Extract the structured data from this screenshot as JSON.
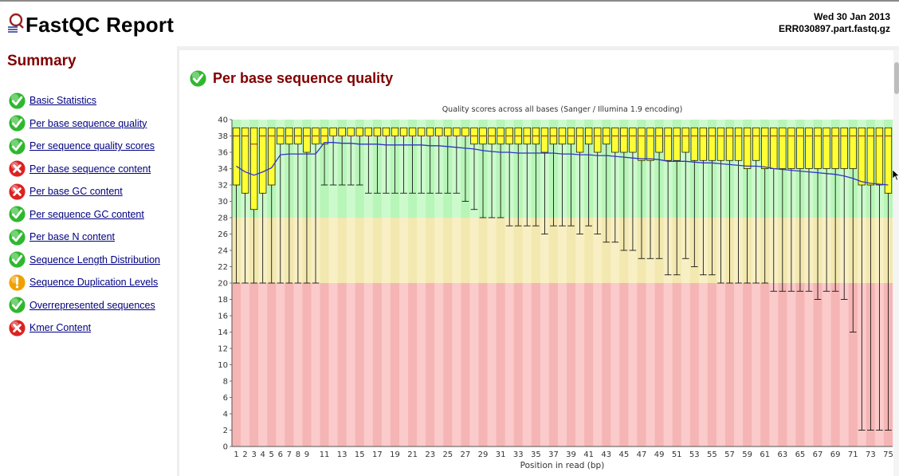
{
  "header": {
    "title": "FastQC Report",
    "date": "Wed 30 Jan 2013",
    "filename": "ERR030897.part.fastq.gz"
  },
  "summary": {
    "title": "Summary",
    "items": [
      {
        "label": "Basic Statistics",
        "status": "pass"
      },
      {
        "label": "Per base sequence quality",
        "status": "pass"
      },
      {
        "label": "Per sequence quality scores",
        "status": "pass"
      },
      {
        "label": "Per base sequence content",
        "status": "fail"
      },
      {
        "label": "Per base GC content",
        "status": "fail"
      },
      {
        "label": "Per sequence GC content",
        "status": "pass"
      },
      {
        "label": "Per base N content",
        "status": "pass"
      },
      {
        "label": "Sequence Length Distribution",
        "status": "pass"
      },
      {
        "label": "Sequence Duplication Levels",
        "status": "warn"
      },
      {
        "label": "Overrepresented sequences",
        "status": "pass"
      },
      {
        "label": "Kmer Content",
        "status": "fail"
      }
    ]
  },
  "module": {
    "title": "Per base sequence quality",
    "status": "pass"
  },
  "colors": {
    "pass": "#2eb82e",
    "warn": "#f0a000",
    "fail": "#dd2222",
    "good_band": [
      "#b8f5b8",
      "#cdfacd"
    ],
    "ok_band": [
      "#f2e8b0",
      "#f8efc4"
    ],
    "bad_band": [
      "#f5b5b5",
      "#fbcaca"
    ],
    "box": "#ffff33",
    "mean_line": "#3333cc"
  },
  "chart_data": {
    "type": "box",
    "title": "Quality scores across all bases (Sanger / Illumina 1.9 encoding)",
    "xlabel": "Position in read (bp)",
    "ylabel": "",
    "ylim": [
      0,
      40
    ],
    "yticks": [
      0,
      2,
      4,
      6,
      8,
      10,
      12,
      14,
      16,
      18,
      20,
      22,
      24,
      26,
      28,
      30,
      32,
      34,
      36,
      38,
      40
    ],
    "xtick_labels": [
      "1",
      "2",
      "3",
      "4",
      "5",
      "6",
      "7",
      "8",
      "9",
      "11",
      "13",
      "15",
      "17",
      "19",
      "21",
      "23",
      "25",
      "27",
      "29",
      "31",
      "33",
      "35",
      "37",
      "39",
      "41",
      "43",
      "45",
      "47",
      "49",
      "51",
      "53",
      "55",
      "57",
      "59",
      "61",
      "63",
      "65",
      "67",
      "69",
      "71",
      "73",
      "75"
    ],
    "bands": [
      {
        "from": 28,
        "to": 40,
        "quality": "good"
      },
      {
        "from": 20,
        "to": 28,
        "quality": "ok"
      },
      {
        "from": 0,
        "to": 20,
        "quality": "bad"
      }
    ],
    "lower": [
      20,
      20,
      20,
      20,
      20,
      20,
      20,
      20,
      20,
      20,
      32,
      32,
      32,
      32,
      32,
      31,
      31,
      31,
      31,
      31,
      31,
      31,
      31,
      31,
      31,
      31,
      30,
      29,
      28,
      28,
      28,
      27,
      27,
      27,
      27,
      26,
      27,
      27,
      27,
      26,
      27,
      26,
      25,
      25,
      24,
      24,
      23,
      23,
      23,
      21,
      21,
      23,
      22,
      21,
      21,
      20,
      20,
      20,
      20,
      20,
      20,
      19,
      19,
      19,
      19,
      19,
      18,
      19,
      19,
      18,
      14,
      2,
      2,
      2,
      2
    ],
    "q1": [
      32,
      31,
      29,
      31,
      32,
      37,
      37,
      37,
      36,
      37,
      37,
      38,
      38,
      38,
      38,
      38,
      38,
      38,
      38,
      38,
      38,
      38,
      38,
      38,
      38,
      38,
      38,
      37,
      37,
      37,
      37,
      37,
      37,
      37,
      37,
      36,
      37,
      37,
      37,
      36,
      37,
      36,
      37,
      36,
      36,
      36,
      35,
      35,
      36,
      35,
      35,
      36,
      35,
      35,
      35,
      35,
      35,
      35,
      34,
      35,
      34,
      34,
      34,
      34,
      34,
      34,
      34,
      34,
      34,
      34,
      34,
      32,
      32,
      32,
      31
    ],
    "median": [
      38,
      38,
      37,
      38,
      38,
      38,
      38,
      38,
      38,
      38,
      38,
      38,
      38,
      38,
      38,
      38,
      38,
      38,
      38,
      38,
      38,
      38,
      38,
      38,
      38,
      38,
      38,
      38,
      38,
      38,
      38,
      38,
      38,
      38,
      38,
      38,
      38,
      38,
      38,
      38,
      38,
      38,
      38,
      38,
      38,
      38,
      38,
      38,
      38,
      38,
      38,
      38,
      38,
      38,
      38,
      38,
      38,
      38,
      38,
      38,
      38,
      38,
      38,
      38,
      38,
      38,
      38,
      38,
      38,
      38,
      38,
      38,
      38,
      38,
      38
    ],
    "q3": [
      39,
      39,
      39,
      39,
      39,
      39,
      39,
      39,
      39,
      39,
      39,
      39,
      39,
      39,
      39,
      39,
      39,
      39,
      39,
      39,
      39,
      39,
      39,
      39,
      39,
      39,
      39,
      39,
      39,
      39,
      39,
      39,
      39,
      39,
      39,
      39,
      39,
      39,
      39,
      39,
      39,
      39,
      39,
      39,
      39,
      39,
      39,
      39,
      39,
      39,
      39,
      39,
      39,
      39,
      39,
      39,
      39,
      39,
      39,
      39,
      39,
      39,
      39,
      39,
      39,
      39,
      39,
      39,
      39,
      39,
      39,
      39,
      39,
      39,
      39
    ],
    "upper": [
      39,
      39,
      39,
      39,
      39,
      39,
      39,
      39,
      39,
      39,
      39,
      39,
      39,
      39,
      39,
      39,
      39,
      39,
      39,
      39,
      39,
      39,
      39,
      39,
      39,
      39,
      39,
      39,
      39,
      39,
      39,
      39,
      39,
      39,
      39,
      39,
      39,
      39,
      39,
      39,
      39,
      39,
      39,
      39,
      39,
      39,
      39,
      39,
      39,
      39,
      39,
      39,
      39,
      39,
      39,
      39,
      39,
      39,
      39,
      39,
      39,
      39,
      39,
      39,
      39,
      39,
      39,
      39,
      39,
      39,
      39,
      39,
      39,
      39,
      39
    ],
    "mean": [
      34.3,
      33.6,
      33.2,
      33.6,
      34.1,
      35.7,
      35.8,
      35.8,
      35.8,
      35.8,
      37.2,
      37.2,
      37.1,
      37.1,
      37.0,
      37.0,
      37.0,
      36.9,
      36.9,
      36.9,
      36.9,
      36.9,
      36.8,
      36.8,
      36.7,
      36.6,
      36.5,
      36.4,
      36.2,
      36.1,
      36.0,
      36.0,
      35.9,
      35.9,
      35.9,
      35.9,
      35.9,
      35.8,
      35.8,
      35.7,
      35.7,
      35.6,
      35.6,
      35.5,
      35.4,
      35.3,
      35.2,
      35.2,
      35.1,
      34.9,
      34.9,
      34.9,
      34.8,
      34.7,
      34.7,
      34.6,
      34.5,
      34.4,
      34.3,
      34.3,
      34.2,
      34.0,
      33.9,
      33.8,
      33.7,
      33.6,
      33.5,
      33.4,
      33.3,
      33.1,
      32.8,
      32.4,
      32.2,
      32.1,
      32.0
    ]
  }
}
